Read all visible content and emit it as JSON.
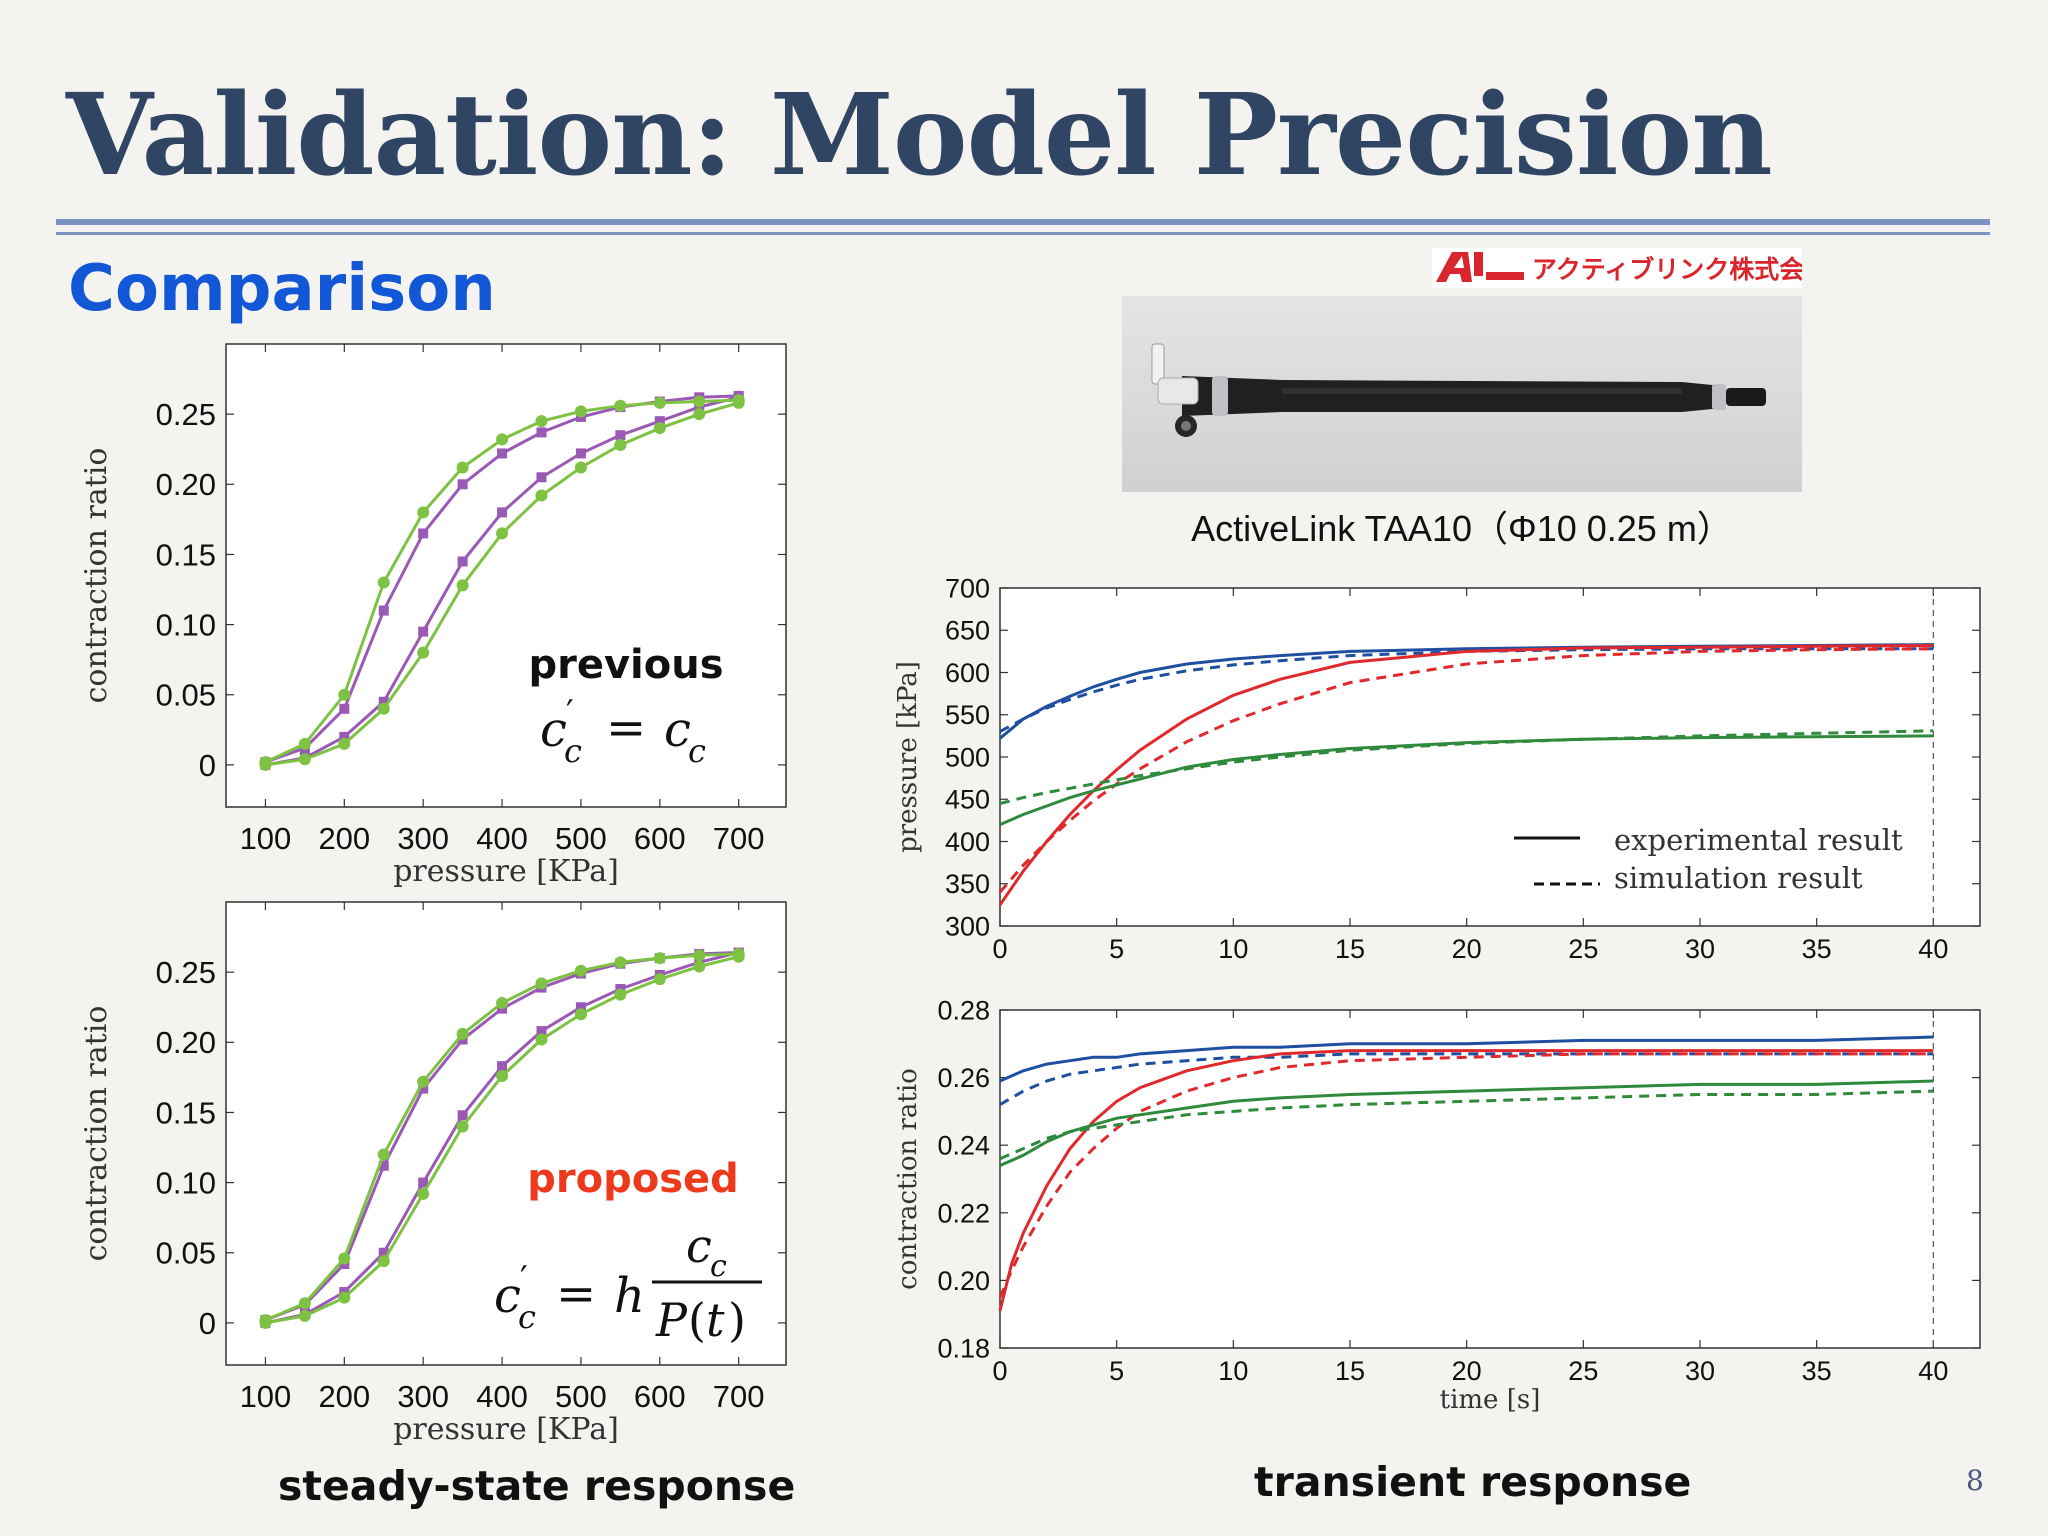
{
  "slide": {
    "title": "Validation: Model Precision",
    "subtitle": "Comparison",
    "page_number": "8",
    "logo_text": "アクティブリンク株式会社",
    "photo_caption": "ActiveLink TAA10（Φ10  0.25 m）",
    "left_caption": "steady-state response",
    "right_caption": "transient response"
  },
  "colors": {
    "title": "#2f4563",
    "subtitle": "#1257d6",
    "rule": "#7b93c0",
    "purple": "#9b59b6",
    "green": "#7dc243",
    "blue": "#1f4fa0",
    "red": "#e0292c",
    "dark_green": "#2f8a3c",
    "proposed_label": "#ee3a1c"
  },
  "annotations": {
    "previous_label": "previous",
    "proposed_label": "proposed"
  },
  "chart_data": [
    {
      "type": "line",
      "panel": "previous",
      "xlabel": "pressure [KPa]",
      "ylabel": "contraction ratio",
      "xticks": [
        "100",
        "200",
        "300",
        "400",
        "500",
        "600",
        "700"
      ],
      "yticks": [
        "0",
        "0.05",
        "0.10",
        "0.15",
        "0.20",
        "0.25"
      ],
      "xlim": [
        50,
        760
      ],
      "ylim": [
        -0.03,
        0.3
      ],
      "series": [
        {
          "color": "purple",
          "x": [
            100,
            150,
            200,
            250,
            300,
            350,
            400,
            450,
            500,
            550,
            600,
            650,
            700
          ],
          "y": [
            0.0,
            0.005,
            0.02,
            0.045,
            0.095,
            0.145,
            0.18,
            0.205,
            0.222,
            0.235,
            0.245,
            0.255,
            0.262
          ]
        },
        {
          "color": "purple",
          "x": [
            100,
            150,
            200,
            250,
            300,
            350,
            400,
            450,
            500,
            550,
            600,
            650,
            700
          ],
          "y": [
            0.002,
            0.012,
            0.04,
            0.11,
            0.165,
            0.2,
            0.222,
            0.237,
            0.248,
            0.255,
            0.259,
            0.262,
            0.263
          ]
        },
        {
          "color": "green",
          "x": [
            100,
            150,
            200,
            250,
            300,
            350,
            400,
            450,
            500,
            550,
            600,
            650,
            700
          ],
          "y": [
            0.0,
            0.004,
            0.015,
            0.04,
            0.08,
            0.128,
            0.165,
            0.192,
            0.212,
            0.228,
            0.24,
            0.25,
            0.258
          ]
        },
        {
          "color": "green",
          "x": [
            100,
            150,
            200,
            250,
            300,
            350,
            400,
            450,
            500,
            550,
            600,
            650,
            700
          ],
          "y": [
            0.002,
            0.015,
            0.05,
            0.13,
            0.18,
            0.212,
            0.232,
            0.245,
            0.252,
            0.256,
            0.258,
            0.259,
            0.26
          ]
        }
      ]
    },
    {
      "type": "line",
      "panel": "proposed",
      "xlabel": "pressure [KPa]",
      "ylabel": "contraction ratio",
      "xticks": [
        "100",
        "200",
        "300",
        "400",
        "500",
        "600",
        "700"
      ],
      "yticks": [
        "0",
        "0.05",
        "0.10",
        "0.15",
        "0.20",
        "0.25"
      ],
      "xlim": [
        50,
        760
      ],
      "ylim": [
        -0.03,
        0.3
      ],
      "series": [
        {
          "color": "purple",
          "x": [
            100,
            150,
            200,
            250,
            300,
            350,
            400,
            450,
            500,
            550,
            600,
            650,
            700
          ],
          "y": [
            0.0,
            0.006,
            0.022,
            0.05,
            0.1,
            0.148,
            0.183,
            0.208,
            0.225,
            0.238,
            0.248,
            0.257,
            0.264
          ]
        },
        {
          "color": "purple",
          "x": [
            100,
            150,
            200,
            250,
            300,
            350,
            400,
            450,
            500,
            550,
            600,
            650,
            700
          ],
          "y": [
            0.002,
            0.013,
            0.042,
            0.112,
            0.167,
            0.202,
            0.224,
            0.239,
            0.249,
            0.256,
            0.26,
            0.263,
            0.264
          ]
        },
        {
          "color": "green",
          "x": [
            100,
            150,
            200,
            250,
            300,
            350,
            400,
            450,
            500,
            550,
            600,
            650,
            700
          ],
          "y": [
            0.0,
            0.005,
            0.018,
            0.044,
            0.092,
            0.14,
            0.176,
            0.202,
            0.22,
            0.234,
            0.245,
            0.254,
            0.261
          ]
        },
        {
          "color": "green",
          "x": [
            100,
            150,
            200,
            250,
            300,
            350,
            400,
            450,
            500,
            550,
            600,
            650,
            700
          ],
          "y": [
            0.002,
            0.014,
            0.046,
            0.12,
            0.172,
            0.206,
            0.228,
            0.242,
            0.251,
            0.257,
            0.26,
            0.262,
            0.263
          ]
        }
      ]
    },
    {
      "type": "line",
      "panel": "pressure",
      "xlabel": "",
      "ylabel": "pressure [kPa]",
      "xticks": [
        "0",
        "5",
        "10",
        "15",
        "20",
        "25",
        "30",
        "35",
        "40"
      ],
      "yticks": [
        "300",
        "350",
        "400",
        "450",
        "500",
        "550",
        "600",
        "650",
        "700"
      ],
      "xlim": [
        0,
        42
      ],
      "ylim": [
        300,
        700
      ],
      "legend": [
        "experimental result",
        "simulation result"
      ],
      "series": [
        {
          "color": "blue",
          "style": "solid",
          "x": [
            0,
            1,
            2,
            3,
            4,
            5,
            6,
            8,
            10,
            12,
            15,
            20,
            25,
            30,
            35,
            40
          ],
          "y": [
            522,
            545,
            560,
            572,
            583,
            592,
            600,
            610,
            616,
            620,
            625,
            628,
            630,
            631,
            632,
            633
          ]
        },
        {
          "color": "blue",
          "style": "dashed",
          "x": [
            0,
            1,
            2,
            3,
            4,
            5,
            6,
            8,
            10,
            12,
            15,
            20,
            25,
            30,
            35,
            40
          ],
          "y": [
            530,
            545,
            558,
            568,
            577,
            585,
            592,
            602,
            609,
            614,
            620,
            625,
            627,
            628,
            628,
            628
          ]
        },
        {
          "color": "red",
          "style": "solid",
          "x": [
            0,
            1,
            2,
            3,
            4,
            5,
            6,
            8,
            10,
            12,
            15,
            20,
            25,
            30,
            35,
            40
          ],
          "y": [
            325,
            365,
            400,
            432,
            460,
            485,
            508,
            545,
            573,
            592,
            612,
            625,
            629,
            630,
            631,
            632
          ]
        },
        {
          "color": "red",
          "style": "dashed",
          "x": [
            0,
            1,
            2,
            3,
            4,
            5,
            6,
            8,
            10,
            12,
            15,
            20,
            25,
            30,
            35,
            40
          ],
          "y": [
            340,
            372,
            400,
            425,
            448,
            468,
            486,
            518,
            543,
            563,
            588,
            610,
            620,
            625,
            627,
            628
          ]
        },
        {
          "color": "dark_green",
          "style": "solid",
          "x": [
            0,
            1,
            2,
            3,
            4,
            5,
            6,
            8,
            10,
            12,
            15,
            20,
            25,
            30,
            35,
            40
          ],
          "y": [
            420,
            432,
            442,
            452,
            460,
            467,
            474,
            488,
            497,
            503,
            510,
            517,
            521,
            523,
            524,
            525
          ]
        },
        {
          "color": "dark_green",
          "style": "dashed",
          "x": [
            0,
            1,
            2,
            3,
            4,
            5,
            6,
            8,
            10,
            12,
            15,
            20,
            25,
            30,
            35,
            40
          ],
          "y": [
            445,
            452,
            458,
            463,
            468,
            473,
            478,
            486,
            494,
            500,
            508,
            516,
            521,
            525,
            528,
            531
          ]
        }
      ]
    },
    {
      "type": "line",
      "panel": "contraction",
      "xlabel": "time [s]",
      "ylabel": "contraction ratio",
      "xticks": [
        "0",
        "5",
        "10",
        "15",
        "20",
        "25",
        "30",
        "35",
        "40"
      ],
      "yticks": [
        "0.18",
        "0.20",
        "0.22",
        "0.24",
        "0.26",
        "0.28"
      ],
      "xlim": [
        0,
        42
      ],
      "ylim": [
        0.18,
        0.28
      ],
      "series": [
        {
          "color": "blue",
          "style": "solid",
          "x": [
            0,
            1,
            2,
            3,
            4,
            5,
            6,
            8,
            10,
            12,
            15,
            20,
            25,
            30,
            35,
            40
          ],
          "y": [
            0.259,
            0.262,
            0.264,
            0.265,
            0.266,
            0.266,
            0.267,
            0.268,
            0.269,
            0.269,
            0.27,
            0.27,
            0.271,
            0.271,
            0.271,
            0.272
          ]
        },
        {
          "color": "blue",
          "style": "dashed",
          "x": [
            0,
            1,
            2,
            3,
            4,
            5,
            6,
            8,
            10,
            12,
            15,
            20,
            25,
            30,
            35,
            40
          ],
          "y": [
            0.252,
            0.256,
            0.259,
            0.261,
            0.262,
            0.263,
            0.264,
            0.265,
            0.266,
            0.266,
            0.267,
            0.267,
            0.267,
            0.267,
            0.267,
            0.267
          ]
        },
        {
          "color": "red",
          "style": "solid",
          "x": [
            0,
            0.5,
            1,
            2,
            3,
            4,
            5,
            6,
            8,
            10,
            12,
            15,
            20,
            25,
            30,
            35,
            40
          ],
          "y": [
            0.191,
            0.205,
            0.214,
            0.228,
            0.239,
            0.247,
            0.253,
            0.257,
            0.262,
            0.265,
            0.267,
            0.268,
            0.268,
            0.268,
            0.268,
            0.268,
            0.268
          ]
        },
        {
          "color": "red",
          "style": "dashed",
          "x": [
            0,
            0.5,
            1,
            2,
            3,
            4,
            5,
            6,
            8,
            10,
            12,
            15,
            20,
            25,
            30,
            35,
            40
          ],
          "y": [
            0.195,
            0.203,
            0.21,
            0.222,
            0.232,
            0.239,
            0.245,
            0.25,
            0.256,
            0.26,
            0.263,
            0.265,
            0.266,
            0.267,
            0.267,
            0.267,
            0.267
          ]
        },
        {
          "color": "dark_green",
          "style": "solid",
          "x": [
            0,
            1,
            2,
            3,
            4,
            5,
            6,
            8,
            10,
            12,
            15,
            20,
            25,
            30,
            35,
            40
          ],
          "y": [
            0.234,
            0.237,
            0.241,
            0.244,
            0.246,
            0.248,
            0.249,
            0.251,
            0.253,
            0.254,
            0.255,
            0.256,
            0.257,
            0.258,
            0.258,
            0.259
          ]
        },
        {
          "color": "dark_green",
          "style": "dashed",
          "x": [
            0,
            1,
            2,
            3,
            4,
            5,
            6,
            8,
            10,
            12,
            15,
            20,
            25,
            30,
            35,
            40
          ],
          "y": [
            0.236,
            0.239,
            0.242,
            0.244,
            0.245,
            0.246,
            0.247,
            0.249,
            0.25,
            0.251,
            0.252,
            0.253,
            0.254,
            0.255,
            0.255,
            0.256
          ]
        }
      ]
    }
  ]
}
